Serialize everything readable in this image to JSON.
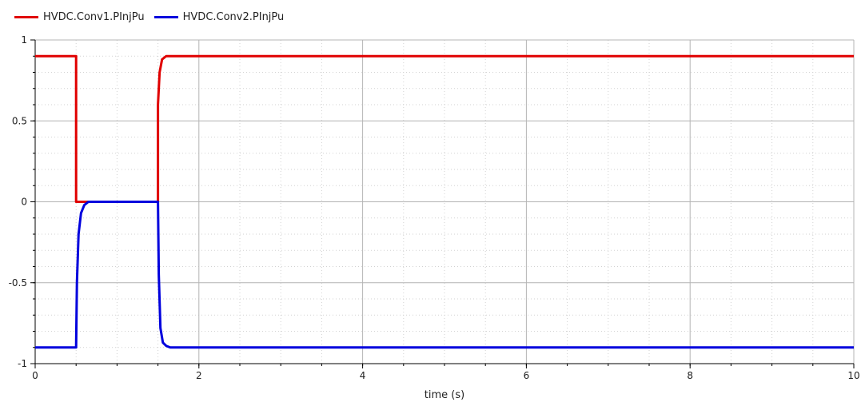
{
  "chart_data": {
    "type": "line",
    "xlabel": "time (s)",
    "ylabel": "",
    "xlim": [
      0,
      10
    ],
    "ylim": [
      -1,
      1
    ],
    "xticks": [
      0,
      2,
      4,
      6,
      8,
      10
    ],
    "xtick_labels": [
      "0",
      "2",
      "4",
      "6",
      "8",
      "10"
    ],
    "yticks": [
      1,
      0.5,
      0,
      -0.5,
      -1
    ],
    "ytick_labels": [
      "1",
      "0.5",
      "0",
      "-0.5",
      "-1"
    ],
    "grid": true,
    "legend_position": "top-left",
    "series": [
      {
        "name": "HVDC.Conv1.PInjPu",
        "color": "#e00000",
        "x": [
          0,
          0.5,
          0.5,
          1.5,
          1.5,
          1.52,
          1.55,
          1.6,
          10
        ],
        "y": [
          0.9,
          0.9,
          0,
          0,
          0.6,
          0.8,
          0.88,
          0.9,
          0.9
        ]
      },
      {
        "name": "HVDC.Conv2.PInjPu",
        "color": "#0000dd",
        "x": [
          0,
          0.5,
          0.51,
          0.53,
          0.56,
          0.6,
          0.65,
          1.5,
          1.51,
          1.53,
          1.56,
          1.6,
          1.65,
          10
        ],
        "y": [
          -0.9,
          -0.9,
          -0.5,
          -0.2,
          -0.07,
          -0.02,
          0,
          0,
          -0.45,
          -0.78,
          -0.87,
          -0.89,
          -0.9,
          -0.9
        ]
      }
    ]
  }
}
